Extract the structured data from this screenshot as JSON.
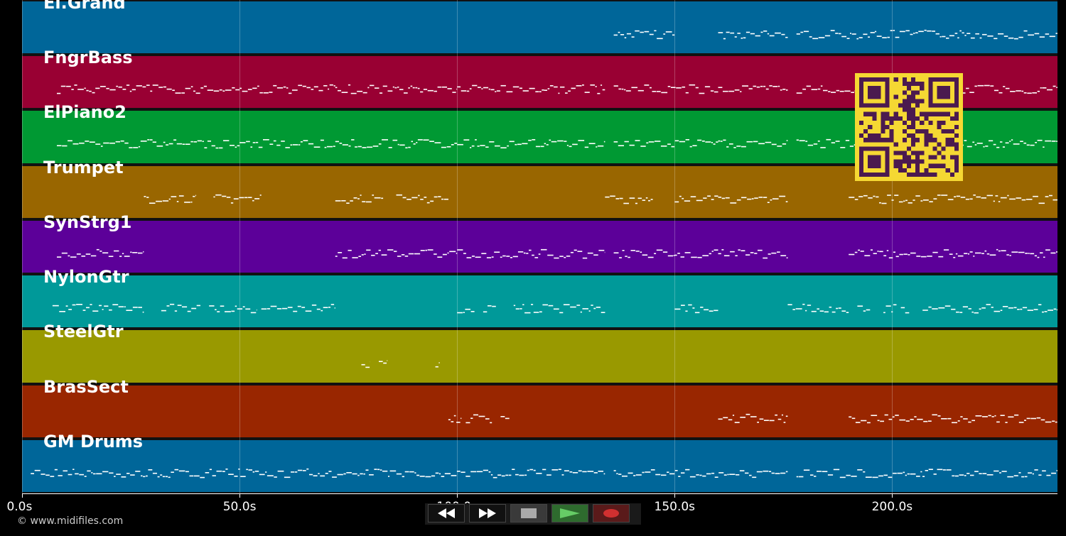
{
  "app": {
    "copyright": "© www.midifiles.com"
  },
  "colors": {
    "background": "#000000",
    "note": "#ffffff",
    "qr_bg": "#f5d833",
    "qr_fg": "#4b1a4f"
  },
  "timeline": {
    "x_min_s": 0,
    "x_max_s": 238,
    "ticks": [
      {
        "value": 0,
        "label": "0.0s"
      },
      {
        "value": 50,
        "label": "50.0s"
      },
      {
        "value": 100,
        "label": "100.0s"
      },
      {
        "value": 150,
        "label": "150.0s"
      },
      {
        "value": 200,
        "label": "200.0s"
      }
    ],
    "gridlines_s": [
      0,
      50,
      100,
      150,
      200
    ]
  },
  "tracks": [
    {
      "name": "El.Grand",
      "color": "#006699",
      "segments": [
        [
          136,
          150
        ],
        [
          160,
          176
        ],
        [
          178,
          196
        ],
        [
          196,
          215
        ],
        [
          215,
          238
        ]
      ]
    },
    {
      "name": "FngrBass",
      "color": "#990033",
      "segments": [
        [
          8,
          30
        ],
        [
          30,
          50
        ],
        [
          50,
          72
        ],
        [
          72,
          100
        ],
        [
          100,
          120
        ],
        [
          120,
          134
        ],
        [
          136,
          160
        ],
        [
          160,
          176
        ],
        [
          178,
          238
        ]
      ]
    },
    {
      "name": "ElPiano2",
      "color": "#009933",
      "segments": [
        [
          8,
          30
        ],
        [
          30,
          50
        ],
        [
          50,
          72
        ],
        [
          72,
          100
        ],
        [
          100,
          120
        ],
        [
          120,
          134
        ],
        [
          136,
          160
        ],
        [
          160,
          176
        ],
        [
          178,
          238
        ]
      ]
    },
    {
      "name": "Trumpet",
      "color": "#996600",
      "segments": [
        [
          28,
          40
        ],
        [
          44,
          55
        ],
        [
          72,
          83
        ],
        [
          86,
          98
        ],
        [
          134,
          145
        ],
        [
          150,
          160
        ],
        [
          160,
          176
        ],
        [
          190,
          238
        ]
      ]
    },
    {
      "name": "SynStrg1",
      "color": "#5c0099",
      "segments": [
        [
          8,
          28
        ],
        [
          72,
          88
        ],
        [
          88,
          100
        ],
        [
          100,
          114
        ],
        [
          114,
          134
        ],
        [
          136,
          150
        ],
        [
          150,
          160
        ],
        [
          160,
          176
        ],
        [
          190,
          238
        ]
      ]
    },
    {
      "name": "NylonGtr",
      "color": "#009999",
      "segments": [
        [
          7,
          28
        ],
        [
          32,
          41
        ],
        [
          43,
          54
        ],
        [
          55,
          72
        ],
        [
          100,
          104
        ],
        [
          106,
          109
        ],
        [
          113,
          134
        ],
        [
          150,
          160
        ],
        [
          176,
          190
        ],
        [
          192,
          195
        ],
        [
          198,
          201
        ],
        [
          202,
          204
        ],
        [
          207,
          238
        ]
      ]
    },
    {
      "name": "SteelGtr",
      "color": "#999900",
      "segments": [
        [
          78,
          80
        ],
        [
          82,
          84
        ],
        [
          95,
          96
        ]
      ]
    },
    {
      "name": "BrasSect",
      "color": "#992600",
      "segments": [
        [
          98,
          101
        ],
        [
          102,
          108
        ],
        [
          110,
          112
        ],
        [
          160,
          176
        ],
        [
          190,
          238
        ]
      ]
    },
    {
      "name": "GM Drums",
      "color": "#006699",
      "segments": [
        [
          2,
          134
        ],
        [
          136,
          176
        ],
        [
          178,
          238
        ]
      ]
    }
  ],
  "transport": {
    "buttons": [
      {
        "id": "rewind",
        "icon": "rewind-icon"
      },
      {
        "id": "ffwd",
        "icon": "fast-forward-icon"
      },
      {
        "id": "stop",
        "icon": "stop-icon"
      },
      {
        "id": "play",
        "icon": "play-icon"
      },
      {
        "id": "record",
        "icon": "record-icon"
      }
    ]
  }
}
